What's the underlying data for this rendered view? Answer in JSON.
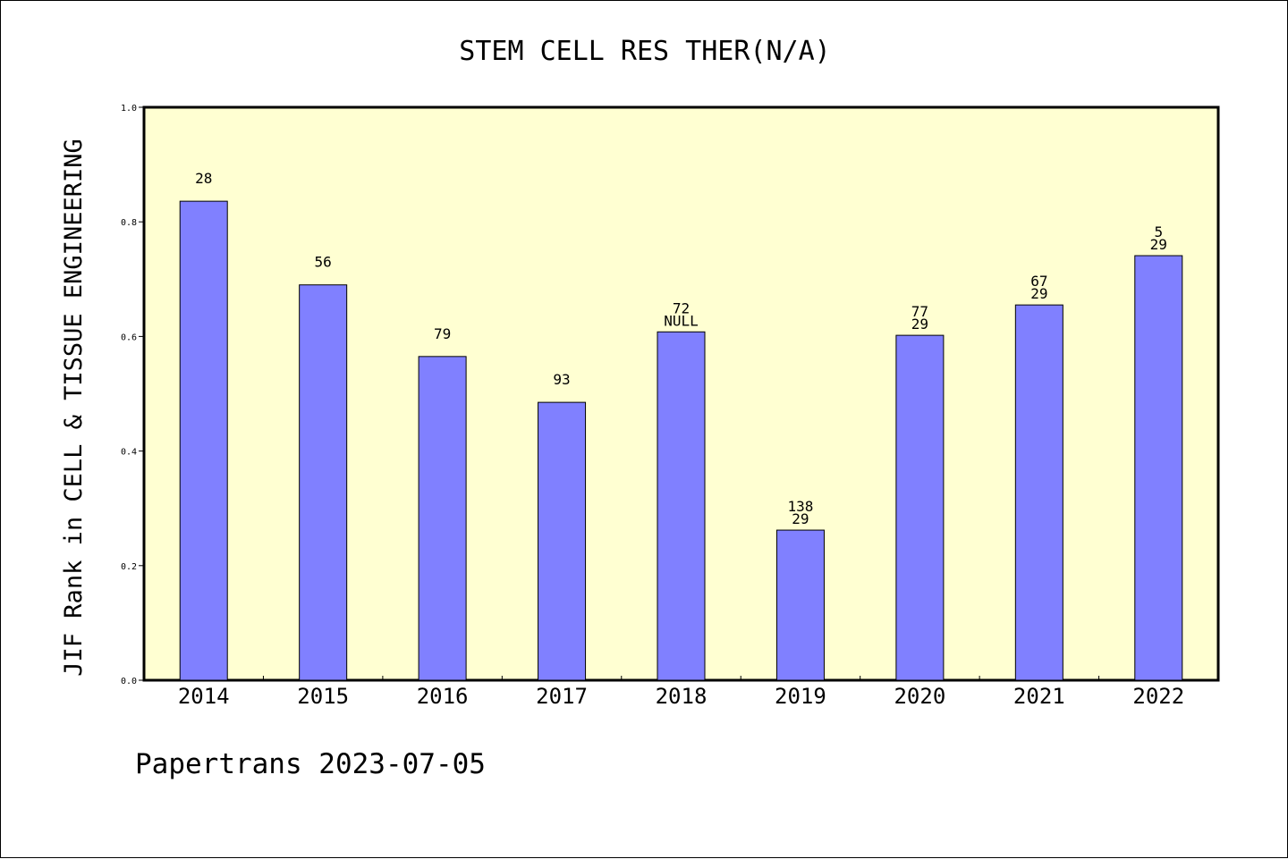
{
  "chart_data": {
    "type": "bar",
    "title": "STEM CELL RES THER(N/A)",
    "xlabel": "",
    "ylabel": "JIF Rank in CELL & TISSUE ENGINEERING",
    "ylim": [
      0,
      1.0
    ],
    "yticks": [
      "0.0",
      "0.2",
      "0.4",
      "0.6",
      "0.8",
      "1.0"
    ],
    "grid": false,
    "categories": [
      "2014",
      "2015",
      "2016",
      "2017",
      "2018",
      "2019",
      "2020",
      "2021",
      "2022"
    ],
    "values": [
      0.836,
      0.69,
      0.565,
      0.485,
      0.608,
      0.262,
      0.602,
      0.655,
      0.741
    ],
    "bar_labels": [
      [
        "28"
      ],
      [
        "56"
      ],
      [
        "79"
      ],
      [
        "93"
      ],
      [
        "72",
        "NULL"
      ],
      [
        "138",
        "29"
      ],
      [
        "77",
        "29"
      ],
      [
        "67",
        "29"
      ],
      [
        "5",
        "29"
      ]
    ],
    "colors": {
      "bar": "#8080ff",
      "plot_background": "#ffffd2",
      "axes": "#000000"
    }
  },
  "footer": {
    "text": "Papertrans 2023-07-05"
  }
}
